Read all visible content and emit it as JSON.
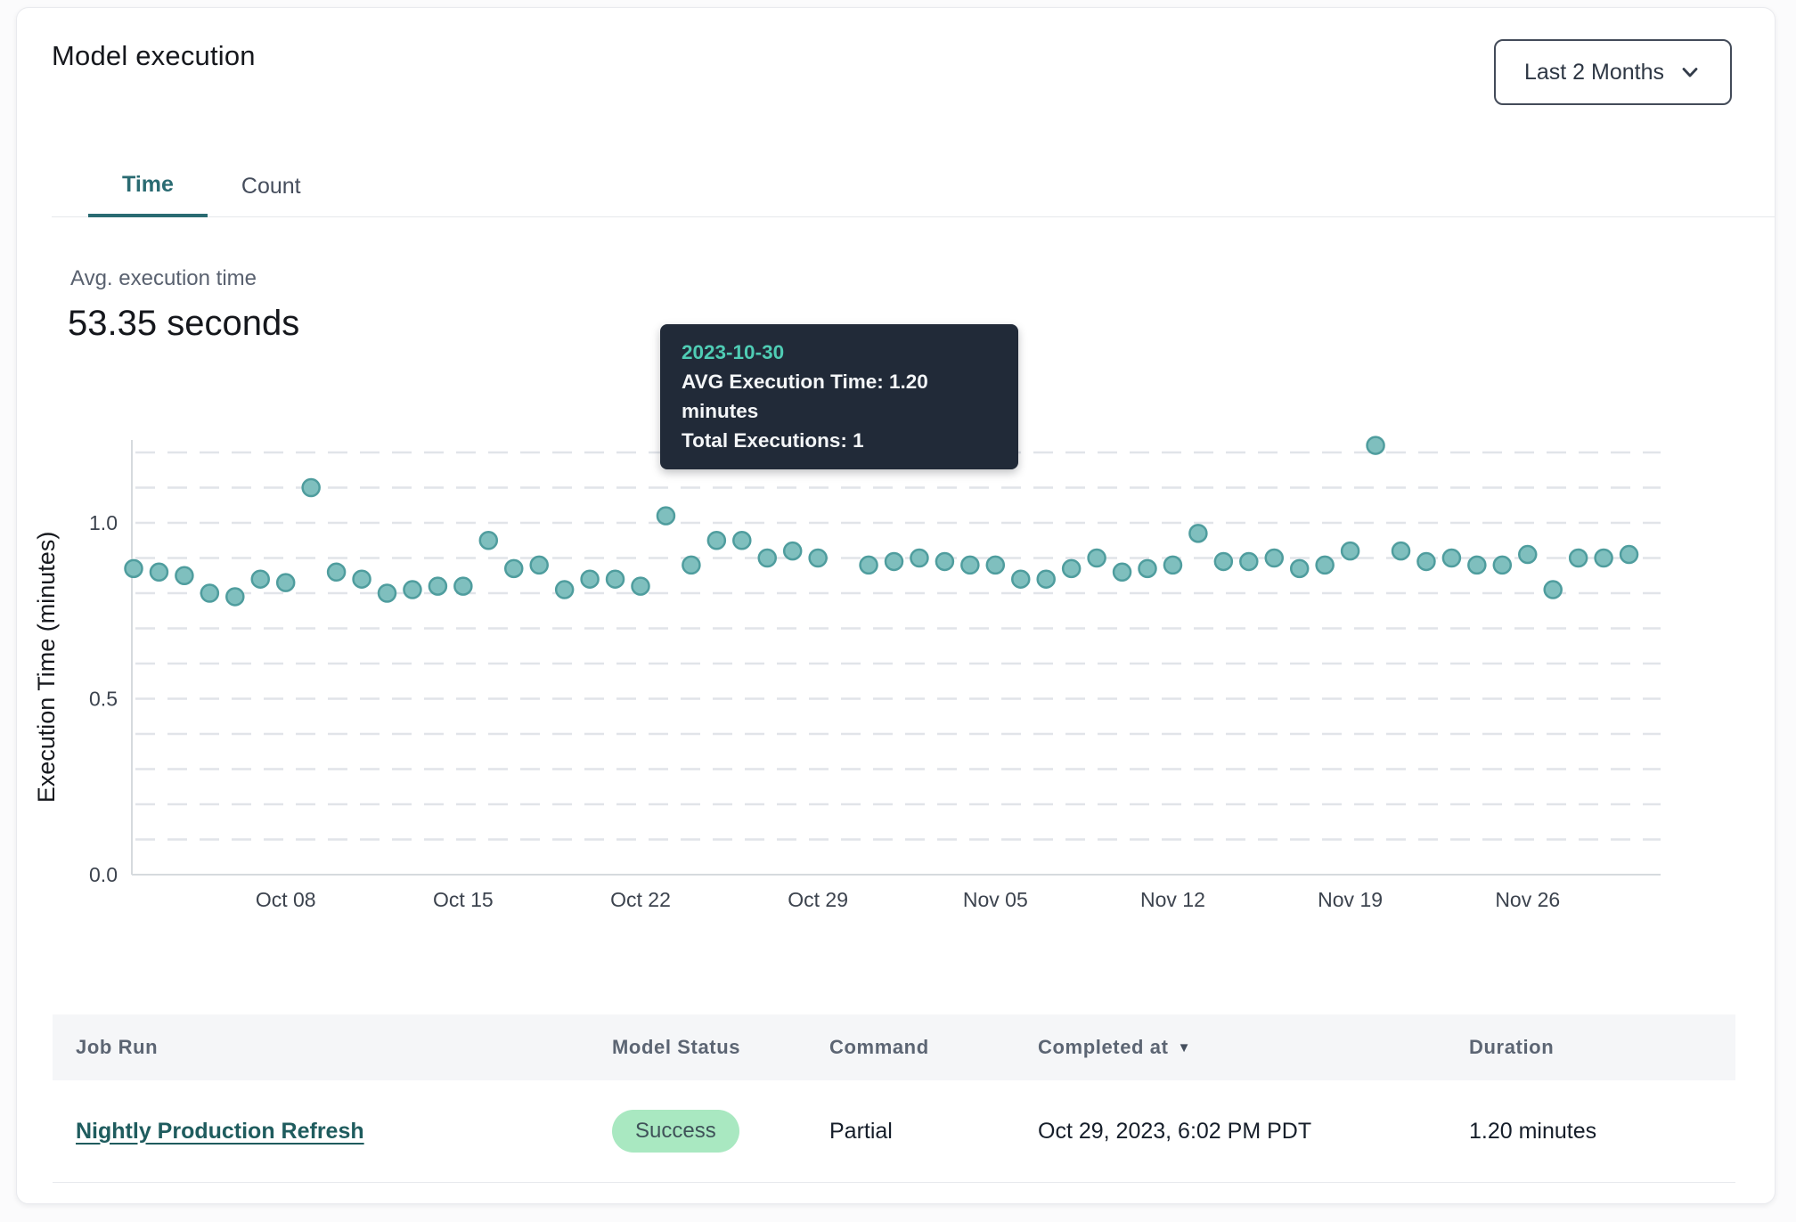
{
  "header": {
    "title": "Model execution",
    "range_selector": {
      "label": "Last 2 Months",
      "icon": "chevron-down-icon"
    }
  },
  "tabs": [
    {
      "id": "time",
      "label": "Time",
      "active": true
    },
    {
      "id": "count",
      "label": "Count",
      "active": false
    }
  ],
  "metric": {
    "label": "Avg. execution time",
    "value": "53.35 seconds"
  },
  "tooltip": {
    "date": "2023-10-30",
    "line1": "AVG Execution Time: 1.20 minutes",
    "line2": "Total Executions: 1"
  },
  "chart_data": {
    "type": "scatter",
    "title": "",
    "xlabel": "",
    "ylabel": "Execution Time (minutes)",
    "ylim": [
      0,
      1.3
    ],
    "grid": true,
    "y_ticks": [
      "0.0",
      "0.5",
      "1.0"
    ],
    "x_ticks": [
      {
        "label": "Oct 08",
        "day": 6
      },
      {
        "label": "Oct 15",
        "day": 13
      },
      {
        "label": "Oct 22",
        "day": 20
      },
      {
        "label": "Oct 29",
        "day": 27
      },
      {
        "label": "Nov 05",
        "day": 34
      },
      {
        "label": "Nov 12",
        "day": 41
      },
      {
        "label": "Nov 19",
        "day": 48
      },
      {
        "label": "Nov 26",
        "day": 55
      }
    ],
    "highlight": {
      "date": "2023-10-30",
      "value": 1.2
    },
    "series": [
      {
        "name": "AVG Execution Time (minutes)",
        "points": [
          {
            "date": "2023-10-02",
            "value": 0.87
          },
          {
            "date": "2023-10-03",
            "value": 0.86
          },
          {
            "date": "2023-10-04",
            "value": 0.85
          },
          {
            "date": "2023-10-05",
            "value": 0.8
          },
          {
            "date": "2023-10-06",
            "value": 0.79
          },
          {
            "date": "2023-10-07",
            "value": 0.84
          },
          {
            "date": "2023-10-08",
            "value": 0.83
          },
          {
            "date": "2023-10-09",
            "value": 1.1
          },
          {
            "date": "2023-10-10",
            "value": 0.86
          },
          {
            "date": "2023-10-11",
            "value": 0.84
          },
          {
            "date": "2023-10-12",
            "value": 0.8
          },
          {
            "date": "2023-10-13",
            "value": 0.81
          },
          {
            "date": "2023-10-14",
            "value": 0.82
          },
          {
            "date": "2023-10-15",
            "value": 0.82
          },
          {
            "date": "2023-10-16",
            "value": 0.95
          },
          {
            "date": "2023-10-17",
            "value": 0.87
          },
          {
            "date": "2023-10-18",
            "value": 0.88
          },
          {
            "date": "2023-10-19",
            "value": 0.81
          },
          {
            "date": "2023-10-20",
            "value": 0.84
          },
          {
            "date": "2023-10-21",
            "value": 0.84
          },
          {
            "date": "2023-10-22",
            "value": 0.82
          },
          {
            "date": "2023-10-23",
            "value": 1.02
          },
          {
            "date": "2023-10-24",
            "value": 0.88
          },
          {
            "date": "2023-10-25",
            "value": 0.95
          },
          {
            "date": "2023-10-26",
            "value": 0.95
          },
          {
            "date": "2023-10-27",
            "value": 0.9
          },
          {
            "date": "2023-10-28",
            "value": 0.92
          },
          {
            "date": "2023-10-29",
            "value": 0.9
          },
          {
            "date": "2023-10-30",
            "value": 1.2
          },
          {
            "date": "2023-10-31",
            "value": 0.88
          },
          {
            "date": "2023-11-01",
            "value": 0.89
          },
          {
            "date": "2023-11-02",
            "value": 0.9
          },
          {
            "date": "2023-11-03",
            "value": 0.89
          },
          {
            "date": "2023-11-04",
            "value": 0.88
          },
          {
            "date": "2023-11-05",
            "value": 0.88
          },
          {
            "date": "2023-11-06",
            "value": 0.84
          },
          {
            "date": "2023-11-07",
            "value": 0.84
          },
          {
            "date": "2023-11-08",
            "value": 0.87
          },
          {
            "date": "2023-11-09",
            "value": 0.9
          },
          {
            "date": "2023-11-10",
            "value": 0.86
          },
          {
            "date": "2023-11-11",
            "value": 0.87
          },
          {
            "date": "2023-11-12",
            "value": 0.88
          },
          {
            "date": "2023-11-13",
            "value": 0.97
          },
          {
            "date": "2023-11-14",
            "value": 0.89
          },
          {
            "date": "2023-11-15",
            "value": 0.89
          },
          {
            "date": "2023-11-16",
            "value": 0.9
          },
          {
            "date": "2023-11-17",
            "value": 0.87
          },
          {
            "date": "2023-11-18",
            "value": 0.88
          },
          {
            "date": "2023-11-19",
            "value": 0.92
          },
          {
            "date": "2023-11-20",
            "value": 1.22
          },
          {
            "date": "2023-11-21",
            "value": 0.92
          },
          {
            "date": "2023-11-22",
            "value": 0.89
          },
          {
            "date": "2023-11-23",
            "value": 0.9
          },
          {
            "date": "2023-11-24",
            "value": 0.88
          },
          {
            "date": "2023-11-25",
            "value": 0.88
          },
          {
            "date": "2023-11-26",
            "value": 0.91
          },
          {
            "date": "2023-11-27",
            "value": 0.81
          },
          {
            "date": "2023-11-28",
            "value": 0.9
          },
          {
            "date": "2023-11-29",
            "value": 0.9
          },
          {
            "date": "2023-11-30",
            "value": 0.91
          }
        ]
      }
    ]
  },
  "table": {
    "columns": [
      {
        "label": "Job Run",
        "sortable": false
      },
      {
        "label": "Model Status",
        "sortable": false
      },
      {
        "label": "Command",
        "sortable": false
      },
      {
        "label": "Completed at",
        "sortable": true
      },
      {
        "label": "Duration",
        "sortable": false
      }
    ],
    "sort_icon_glyph": "▼",
    "row": {
      "job_run": "Nightly Production Refresh",
      "model_status": "Success",
      "command": "Partial",
      "completed_at": "Oct 29, 2023, 6:02 PM PDT",
      "duration": "1.20 minutes"
    }
  },
  "colors": {
    "accent_teal": "#2a6b72",
    "point_fill": "#7fbfbe",
    "point_stroke": "#4f9d9e",
    "highlight_point": "#39788b",
    "tooltip_bg": "#212a38",
    "tooltip_date": "#4fccb4",
    "badge_bg": "#a9e8c1",
    "link": "#1f5c5e"
  }
}
